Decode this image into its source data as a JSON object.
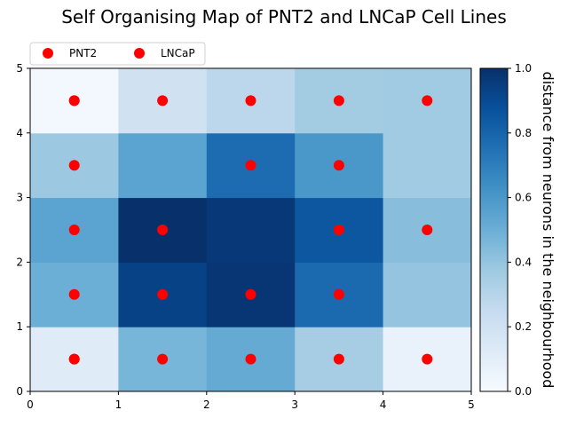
{
  "chart_data": {
    "type": "heatmap",
    "title": "Self Organising Map of PNT2 and LNCaP Cell Lines",
    "xlim": [
      0,
      5
    ],
    "ylim": [
      0,
      5
    ],
    "x_ticks": [
      "0",
      "1",
      "2",
      "3",
      "4",
      "5"
    ],
    "y_ticks": [
      "0",
      "1",
      "2",
      "3",
      "4",
      "5"
    ],
    "grid": false,
    "cells": [
      [
        0.12,
        0.47,
        0.52,
        0.35,
        0.07
      ],
      [
        0.5,
        0.93,
        0.98,
        0.78,
        0.4
      ],
      [
        0.55,
        1.0,
        0.97,
        0.85,
        0.43
      ],
      [
        0.38,
        0.55,
        0.77,
        0.6,
        0.37
      ],
      [
        0.02,
        0.2,
        0.28,
        0.36,
        0.37
      ]
    ],
    "colorbar": {
      "label": "distance from neurons in the neighbourhood",
      "min": 0.0,
      "max": 1.0,
      "ticks": [
        "0.0",
        "0.2",
        "0.4",
        "0.6",
        "0.8",
        "1.0"
      ],
      "colormap": "Blues"
    },
    "legend": {
      "placement": "top-left",
      "entries": [
        {
          "label": "PNT2",
          "color": "#ff0000"
        },
        {
          "label": "LNCaP",
          "color": "#ff0000"
        }
      ]
    },
    "series": [
      {
        "name": "PNT2",
        "color": "#ff0000",
        "points": [
          [
            0.5,
            0.5
          ],
          [
            0.5,
            1.5
          ],
          [
            0.5,
            2.5
          ],
          [
            0.5,
            3.5
          ],
          [
            0.5,
            4.5
          ],
          [
            3.5,
            4.5
          ],
          [
            3.5,
            3.5
          ],
          [
            2.5,
            3.5
          ]
        ]
      },
      {
        "name": "LNCaP",
        "color": "#ff0000",
        "points": [
          [
            0.5,
            0.5
          ],
          [
            1.5,
            0.5
          ],
          [
            2.5,
            0.5
          ],
          [
            3.5,
            0.5
          ],
          [
            4.5,
            0.5
          ],
          [
            1.5,
            1.5
          ],
          [
            2.5,
            1.5
          ],
          [
            3.5,
            1.5
          ],
          [
            1.5,
            2.5
          ],
          [
            3.5,
            2.5
          ],
          [
            4.5,
            2.5
          ],
          [
            0.5,
            4.5
          ],
          [
            1.5,
            4.5
          ],
          [
            2.5,
            4.5
          ],
          [
            4.5,
            4.5
          ]
        ]
      }
    ]
  }
}
